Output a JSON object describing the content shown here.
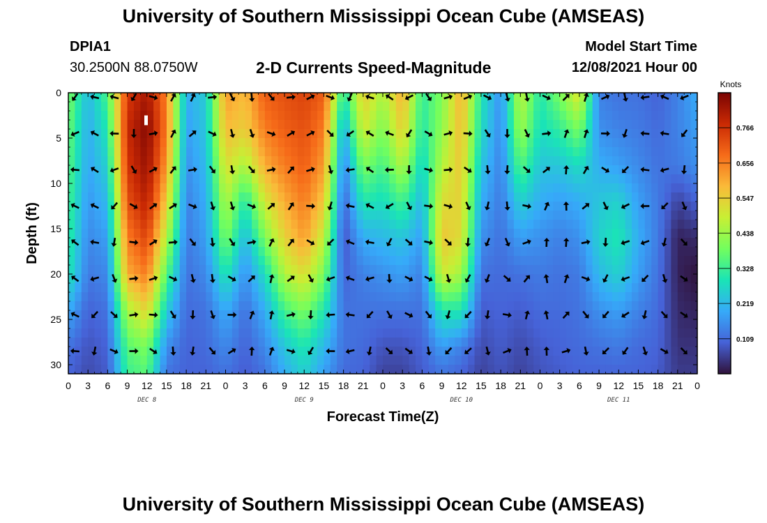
{
  "header": {
    "title": "University of Southern Mississippi Ocean Cube (AMSEAS)",
    "station_id": "DPIA1",
    "station_coords": "30.2500N  88.0750W",
    "chart_title": "2-D Currents Speed-Magnitude",
    "model_start_label": "Model Start Time",
    "model_start_value": "12/08/2021 Hour 00"
  },
  "footer": {
    "title": "University of Southern Mississippi Ocean Cube (AMSEAS)"
  },
  "colors": {
    "background": "#ffffff",
    "axis": "#000000",
    "arrow": "#000000",
    "marker": "#ffffff"
  },
  "chart_data": {
    "type": "heatmap",
    "title": "2-D Currents Speed-Magnitude",
    "xlabel": "Forecast Time(Z)",
    "ylabel": "Depth (ft)",
    "x_range": [
      0,
      96
    ],
    "y_range": [
      0,
      31
    ],
    "y_inverted": true,
    "x_ticks": [
      0,
      3,
      6,
      9,
      12,
      15,
      18,
      21,
      24,
      27,
      30,
      33,
      36,
      39,
      42,
      45,
      48,
      51,
      54,
      57,
      60,
      63,
      66,
      69,
      72,
      75,
      78,
      81,
      84,
      87,
      90,
      93,
      96
    ],
    "x_tick_labels": [
      "0",
      "3",
      "6",
      "9",
      "12",
      "15",
      "18",
      "21",
      "0",
      "3",
      "6",
      "9",
      "12",
      "15",
      "18",
      "21",
      "0",
      "3",
      "6",
      "9",
      "12",
      "15",
      "18",
      "21",
      "0",
      "3",
      "6",
      "9",
      "12",
      "15",
      "18",
      "21",
      "0"
    ],
    "y_ticks": [
      0,
      5,
      10,
      15,
      20,
      25,
      30
    ],
    "y_tick_labels": [
      "0",
      "5",
      "10",
      "15",
      "20",
      "25",
      "30"
    ],
    "day_labels": [
      {
        "x": 12,
        "label": "DEC 8"
      },
      {
        "x": 36,
        "label": "DEC 9"
      },
      {
        "x": 60,
        "label": "DEC 10"
      },
      {
        "x": 84,
        "label": "DEC 11"
      }
    ],
    "colorbar": {
      "unit": "Knots",
      "min": 0.0,
      "max": 0.875,
      "ticks": [
        0.109,
        0.219,
        0.328,
        0.438,
        0.547,
        0.656,
        0.766
      ],
      "tick_labels": [
        "0.109",
        "0.219",
        "0.328",
        "0.438",
        "0.547",
        "0.656",
        "0.766"
      ],
      "colormap": [
        "#30123b",
        "#4662d7",
        "#36aaf9",
        "#1ae4b6",
        "#72fe5e",
        "#c8ef34",
        "#faba39",
        "#f66b19",
        "#ca2a04",
        "#7a0403"
      ]
    },
    "arrow_times": [
      1,
      4,
      7,
      10,
      13,
      16,
      19,
      22,
      25,
      28,
      31,
      34,
      37,
      40,
      43,
      46,
      49,
      52,
      55,
      58,
      61,
      64,
      67,
      70,
      73,
      76,
      79,
      82,
      85,
      88,
      91,
      94
    ],
    "arrow_depths": [
      0,
      4,
      8,
      12,
      16,
      20,
      24,
      28
    ],
    "speed_grid_note": "values in knots sampled every 3 h (rows) x 4 ft depth (cols 0..28 ft)",
    "speed_times": [
      0,
      3,
      6,
      9,
      12,
      15,
      18,
      21,
      24,
      27,
      30,
      33,
      36,
      39,
      42,
      45,
      48,
      51,
      54,
      57,
      60,
      63,
      66,
      69,
      72,
      75,
      78,
      81,
      84,
      87,
      90,
      93,
      96
    ],
    "speed_depths": [
      0,
      4,
      8,
      12,
      16,
      20,
      24,
      28,
      31
    ],
    "speed": [
      [
        0.4,
        0.38,
        0.36,
        0.34,
        0.32,
        0.3,
        0.2,
        0.12,
        0.1
      ],
      [
        0.22,
        0.2,
        0.19,
        0.17,
        0.15,
        0.13,
        0.1,
        0.08,
        0.07
      ],
      [
        0.35,
        0.3,
        0.26,
        0.22,
        0.18,
        0.15,
        0.12,
        0.1,
        0.09
      ],
      [
        0.75,
        0.78,
        0.76,
        0.72,
        0.66,
        0.6,
        0.45,
        0.36,
        0.33
      ],
      [
        0.82,
        0.86,
        0.84,
        0.8,
        0.74,
        0.66,
        0.54,
        0.4,
        0.36
      ],
      [
        0.65,
        0.66,
        0.62,
        0.55,
        0.46,
        0.36,
        0.25,
        0.16,
        0.12
      ],
      [
        0.2,
        0.18,
        0.16,
        0.14,
        0.13,
        0.12,
        0.11,
        0.1,
        0.1
      ],
      [
        0.25,
        0.24,
        0.22,
        0.2,
        0.18,
        0.15,
        0.12,
        0.11,
        0.1
      ],
      [
        0.62,
        0.58,
        0.52,
        0.46,
        0.4,
        0.3,
        0.2,
        0.15,
        0.12
      ],
      [
        0.58,
        0.55,
        0.45,
        0.3,
        0.22,
        0.16,
        0.12,
        0.1,
        0.09
      ],
      [
        0.7,
        0.66,
        0.6,
        0.5,
        0.4,
        0.28,
        0.2,
        0.15,
        0.12
      ],
      [
        0.72,
        0.7,
        0.66,
        0.6,
        0.54,
        0.46,
        0.34,
        0.24,
        0.2
      ],
      [
        0.74,
        0.72,
        0.7,
        0.66,
        0.62,
        0.52,
        0.4,
        0.3,
        0.26
      ],
      [
        0.7,
        0.66,
        0.62,
        0.56,
        0.48,
        0.4,
        0.3,
        0.22,
        0.18
      ],
      [
        0.3,
        0.2,
        0.14,
        0.1,
        0.08,
        0.1,
        0.12,
        0.12,
        0.11
      ],
      [
        0.55,
        0.5,
        0.4,
        0.3,
        0.2,
        0.14,
        0.12,
        0.11,
        0.1
      ],
      [
        0.45,
        0.4,
        0.34,
        0.28,
        0.22,
        0.16,
        0.12,
        0.08,
        0.06
      ],
      [
        0.6,
        0.55,
        0.46,
        0.34,
        0.24,
        0.18,
        0.12,
        0.08,
        0.06
      ],
      [
        0.32,
        0.3,
        0.26,
        0.22,
        0.18,
        0.14,
        0.12,
        0.1,
        0.09
      ],
      [
        0.4,
        0.42,
        0.46,
        0.52,
        0.56,
        0.5,
        0.3,
        0.18,
        0.12
      ],
      [
        0.6,
        0.58,
        0.56,
        0.54,
        0.52,
        0.44,
        0.3,
        0.14,
        0.1
      ],
      [
        0.3,
        0.28,
        0.24,
        0.2,
        0.16,
        0.12,
        0.09,
        0.07,
        0.06
      ],
      [
        0.16,
        0.15,
        0.14,
        0.13,
        0.12,
        0.11,
        0.1,
        0.09,
        0.08
      ],
      [
        0.48,
        0.44,
        0.36,
        0.26,
        0.18,
        0.12,
        0.09,
        0.07,
        0.06
      ],
      [
        0.3,
        0.28,
        0.24,
        0.2,
        0.16,
        0.13,
        0.11,
        0.09,
        0.08
      ],
      [
        0.4,
        0.32,
        0.24,
        0.18,
        0.14,
        0.12,
        0.11,
        0.1,
        0.09
      ],
      [
        0.52,
        0.4,
        0.28,
        0.2,
        0.16,
        0.13,
        0.12,
        0.11,
        0.1
      ],
      [
        0.14,
        0.16,
        0.2,
        0.24,
        0.26,
        0.22,
        0.16,
        0.12,
        0.1
      ],
      [
        0.12,
        0.14,
        0.18,
        0.26,
        0.3,
        0.26,
        0.18,
        0.13,
        0.1
      ],
      [
        0.12,
        0.13,
        0.15,
        0.18,
        0.2,
        0.18,
        0.14,
        0.11,
        0.1
      ],
      [
        0.1,
        0.11,
        0.12,
        0.13,
        0.13,
        0.12,
        0.11,
        0.1,
        0.09
      ],
      [
        0.14,
        0.14,
        0.13,
        0.06,
        0.02,
        0.02,
        0.03,
        0.04,
        0.05
      ],
      [
        0.2,
        0.18,
        0.16,
        0.1,
        0.03,
        0.0,
        0.02,
        0.04,
        0.05
      ]
    ]
  }
}
